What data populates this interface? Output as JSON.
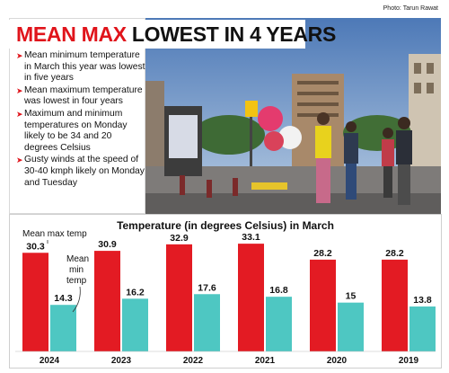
{
  "photo_credit": "Photo: Tarun Rawat",
  "headline": {
    "red": "MEAN MAX",
    "black": " LOWEST IN 4 YEARS"
  },
  "bullets": [
    "Mean minimum temperature in March this year was lowest in five years",
    "Mean maximum temperature was lowest in four years",
    "Maximum and minimum temperatures on Monday likely to be 34 and 20 degrees Celsius",
    "Gusty winds at the speed of 30-40 kmph likely on Monday and Tuesday"
  ],
  "colors": {
    "max": "#e31b23",
    "min": "#4ec7c2",
    "accent": "#e0141b"
  },
  "chart_data": {
    "type": "bar",
    "title": "Temperature (in degrees Celsius) in March",
    "categories": [
      "2024",
      "2023",
      "2022",
      "2021",
      "2020",
      "2019"
    ],
    "series": [
      {
        "name": "Mean max temp",
        "values": [
          30.3,
          30.9,
          32.9,
          33.1,
          28.2,
          28.2
        ]
      },
      {
        "name": "Mean min temp",
        "values": [
          14.3,
          16.2,
          17.6,
          16.8,
          15,
          13.8
        ]
      }
    ],
    "value_labels": {
      "max": [
        "30.3",
        "30.9",
        "32.9",
        "33.1",
        "28.2",
        "28.2"
      ],
      "min": [
        "14.3",
        "16.2",
        "17.6",
        "16.8",
        "15",
        "13.8"
      ]
    },
    "ylim": [
      0,
      37
    ],
    "legend_labels": {
      "max": "Mean max temp",
      "min_line1": "Mean",
      "min_line2": "min",
      "min_line3": "temp"
    },
    "grid": false
  }
}
